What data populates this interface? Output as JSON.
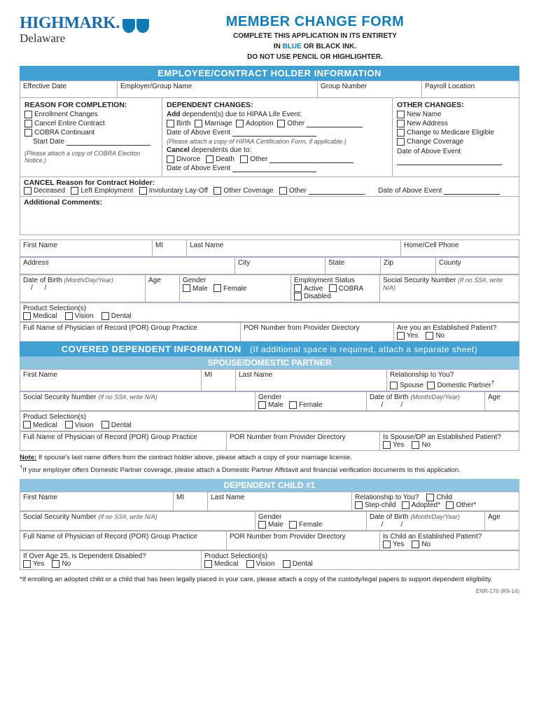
{
  "colors": {
    "blue": "#0f7bb5",
    "bar": "#3fa0d1",
    "barLight": "#8fc4de",
    "border": "#aab"
  },
  "logo": {
    "brand": "HIGHMARK.",
    "sub": "Delaware"
  },
  "title": {
    "main": "MEMBER CHANGE FORM",
    "line1": "COMPLETE THIS APPLICATION IN ITS ENTIRETY",
    "line2a": "IN ",
    "line2blue": "BLUE",
    "line2b": " OR BLACK INK.",
    "line3": "DO NOT USE PENCIL OR HIGHLIGHTER."
  },
  "bars": {
    "emp": "EMPLOYEE/CONTRACT HOLDER INFORMATION",
    "dep": "COVERED DEPENDENT INFORMATION",
    "depParen": "(If additional space is required, attach a separate sheet)",
    "spouse": "SPOUSE/DOMESTIC PARTNER",
    "child1": "DEPENDENT CHILD #1"
  },
  "emp": {
    "effDate": "Effective Date",
    "empGroup": "Employer/Group Name",
    "groupNum": "Group Number",
    "payroll": "Payroll Location"
  },
  "reason": {
    "hdr": "REASON FOR COMPLETION:",
    "enroll": "Enrollment Changes",
    "cancelContract": "Cancel Entire Contract",
    "cobra": "COBRA Continuant",
    "startDate": "Start Date",
    "cobraNote": "(Please attach a copy of COBRA Election Notice.)"
  },
  "depchg": {
    "hdr": "DEPENDENT CHANGES:",
    "addLine": "Add dependent(s) due to HIPAA Life Event:",
    "birth": "Birth",
    "marriage": "Marriage",
    "adoption": "Adoption",
    "other": "Other",
    "dateAbove": "Date of Above Event",
    "hipaaNote": "(Please attach a copy of HIPAA Certification Form, if applicable.)",
    "cancelLine": "Cancel dependents due to:",
    "divorce": "Divorce",
    "death": "Death"
  },
  "otherchg": {
    "hdr": "OTHER CHANGES:",
    "newName": "New Name",
    "newAddr": "New Address",
    "medicare": "Change to Medicare Eligible",
    "coverage": "Change Coverage",
    "dateAbove": "Date of Above Event"
  },
  "cancel": {
    "hdr": "CANCEL Reason for Contract Holder:",
    "deceased": "Deceased",
    "left": "Left Employment",
    "layoff": "Involuntary Lay-Off",
    "othercov": "Other Coverage",
    "other": "Other",
    "dateAbove": "Date of Above Event"
  },
  "addl": "Additional Comments:",
  "person": {
    "first": "First Name",
    "mi": "MI",
    "last": "Last Name",
    "phone": "Home/Cell Phone",
    "address": "Address",
    "city": "City",
    "state": "State",
    "zip": "Zip",
    "county": "County",
    "dob": "Date of Birth",
    "dobHint": "(Month/Day/Year)",
    "age": "Age",
    "gender": "Gender",
    "male": "Male",
    "female": "Female",
    "empStatus": "Employment Status",
    "active": "Active",
    "cobraS": "COBRA",
    "disabled": "Disabled",
    "ssn": "Social Security Number",
    "ssnHint": "(If no SS#, write N/A)",
    "prodSel": "Product Selection(s)",
    "medical": "Medical",
    "vision": "Vision",
    "dental": "Dental",
    "por": "Full Name of Physician of Record (POR) Group Practice",
    "porNum": "POR Number from Provider Directory",
    "estPatient": "Are you an Established Patient?",
    "estPatientSp": "Is Spouse/DP an Established Patient?",
    "estPatientCh": "Is Child an Established Patient?",
    "yes": "Yes",
    "no": "No",
    "rel": "Relationship to You?",
    "spouse": "Spouse",
    "dompart": "Domestic Partner",
    "child": "Child",
    "stepchild": "Step-child",
    "adopted": "Adopted*",
    "otherR": "Other*",
    "over25": "If Over Age 25, is Dependent Disabled?"
  },
  "notes": {
    "spouseLine": "Note:  If spouse's last name differs from the contract holder above, please attach a copy of your marriage license.",
    "daggerLine": "If your employer offers Domestic Partner coverage, please attach a Domestic Partner Affidavit and financial verification documents to this application.",
    "childLine": "*If enrolling an adopted child or a child that has been legally placed in your care, please attach a copy of the custody/legal papers to support dependent eligibility."
  },
  "formNo": "ENR-176  (R9-14)"
}
